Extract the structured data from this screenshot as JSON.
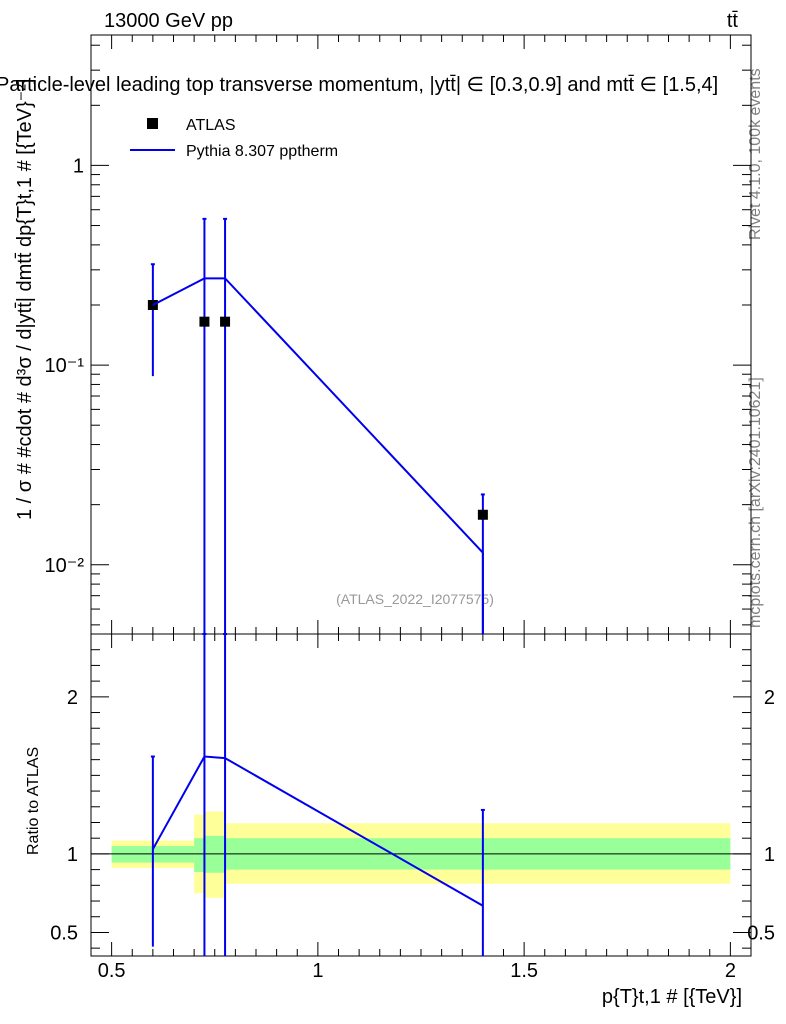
{
  "header": {
    "energy": "13000 GeV pp",
    "process": "tt̄",
    "title": "Particle-level leading top transverse momentum, |ytt̄| ∈ [0.3,0.9] and mtt̄ ∈ [1.5,4]"
  },
  "side_labels": {
    "rivet": "Rivet 4.1.0,  100k events",
    "mcplots": "mcplots.cern.ch [arXiv:2401.10621]"
  },
  "watermark": "(ATLAS_2022_I2077575)",
  "legend": {
    "data_label": "ATLAS",
    "mc_label": "Pythia 8.307 pptherm"
  },
  "axes": {
    "ylabel_main": "1 / σ # #cdot # d³σ / d|ytt̄| dmtt̄ dp{T}t,1 # [{TeV}⁻²]",
    "ylabel_ratio": "Ratio to ATLAS",
    "xlabel": "p{T}t,1 # [{TeV}]",
    "x_ticks": [
      "0.5",
      "1",
      "1.5",
      "2"
    ],
    "y_main_ticks": [
      "10⁻²",
      "10⁻¹",
      "1"
    ],
    "y_ratio_ticks": [
      "0.5",
      "1",
      "2"
    ]
  },
  "colors": {
    "data": "#000000",
    "mc": "#0000ee",
    "band_inner": "#99ff99",
    "band_outer": "#ffff99"
  },
  "chart_data": [
    {
      "type": "scatter",
      "panel": "main",
      "xscale": "linear",
      "yscale": "log",
      "xlim": [
        0.45,
        2.05
      ],
      "ylim": [
        0.0045,
        4.5
      ],
      "series": [
        {
          "name": "ATLAS",
          "x": [
            0.6,
            0.725,
            0.775,
            1.4
          ],
          "values": [
            0.2,
            0.165,
            0.165,
            0.0178
          ],
          "err_low": [
            0.112,
            0.165,
            0.165,
            0.0178
          ],
          "err_high": [
            0.12,
            0.375,
            0.375,
            0.0047
          ]
        },
        {
          "name": "Pythia 8.307 pptherm",
          "style": "line",
          "x": [
            0.6,
            0.725,
            0.775,
            1.4
          ],
          "values": [
            0.2,
            0.272,
            0.272,
            0.0115
          ]
        }
      ]
    },
    {
      "type": "line",
      "panel": "ratio",
      "xlim": [
        0.45,
        2.05
      ],
      "ylim": [
        0.35,
        2.4
      ],
      "reference": 1,
      "bands": [
        {
          "x0": 0.5,
          "x1": 0.7,
          "inner": [
            0.945,
            1.05
          ],
          "outer": [
            0.91,
            1.085
          ]
        },
        {
          "x0": 0.7,
          "x1": 0.725,
          "inner": [
            0.885,
            1.1
          ],
          "outer": [
            0.75,
            1.25
          ]
        },
        {
          "x0": 0.725,
          "x1": 0.775,
          "inner": [
            0.88,
            1.115
          ],
          "outer": [
            0.72,
            1.27
          ]
        },
        {
          "x0": 0.775,
          "x1": 2.0,
          "inner": [
            0.9,
            1.1
          ],
          "outer": [
            0.81,
            1.195
          ]
        }
      ],
      "series": [
        {
          "name": "Pythia 8.307 pptherm",
          "x": [
            0.6,
            0.725,
            0.775,
            1.4
          ],
          "values": [
            1.03,
            1.62,
            1.61,
            0.67
          ],
          "err_low": [
            0.62,
            1.3,
            1.3,
            0.67
          ],
          "err_high": [
            0.59,
            1.0,
            1.0,
            0.61
          ]
        }
      ]
    }
  ]
}
